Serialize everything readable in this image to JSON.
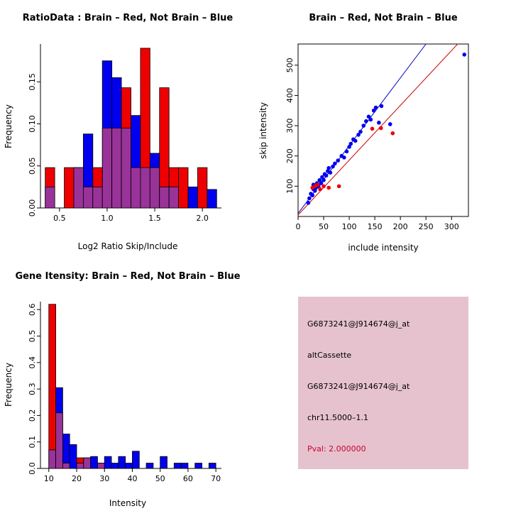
{
  "page": {
    "background": "#FFFFFF"
  },
  "colors": {
    "brain_red": "#EE0000",
    "not_brain_blue": "#0000EE",
    "overlap_purple": "#993399",
    "fit_line_blue": "#0000CC",
    "fit_line_red": "#CC0000",
    "info_panel_pink": "#E6C2CE",
    "pval_red": "#CC0033"
  },
  "info_panel": {
    "background": "#E6C2CE",
    "lines": [
      {
        "text": "G6873241@J914674@j_at",
        "color": "#000000"
      },
      {
        "text": "altCassette",
        "color": "#000000"
      },
      {
        "text": "G6873241@J914674@j_at",
        "color": "#000000"
      },
      {
        "text": "chr11.5000–1.1",
        "color": "#000000"
      },
      {
        "text": "Pval: 2.000000",
        "color": "#CC0033"
      }
    ]
  },
  "chart_data": [
    {
      "id": "ratio-histogram",
      "type": "bar",
      "title": "RatioData : Brain – Red, Not Brain – Blue",
      "xlabel": "Log2 Ratio Skip/Include",
      "ylabel": "Frequency",
      "xlim": [
        0.3,
        2.2
      ],
      "ylim": [
        0,
        0.195
      ],
      "xticks": [
        0.5,
        1.0,
        1.5,
        2.0
      ],
      "xtick_labels": [
        "0.5",
        "1.0",
        "1.5",
        "2.0"
      ],
      "yticks": [
        0.0,
        0.05,
        0.1,
        0.15
      ],
      "ytick_labels": [
        "0.00",
        "0.05",
        "0.10",
        "0.15"
      ],
      "grid": false,
      "legend": "none",
      "bin_start": 0.35,
      "bin_width": 0.1,
      "overlap_color": "#993399",
      "series": [
        {
          "name": "Not Brain (blue)",
          "color": "#0000EE",
          "values": [
            0.025,
            0,
            0,
            0.048,
            0.088,
            0.025,
            0.175,
            0.155,
            0.095,
            0.11,
            0.048,
            0.065,
            0.025,
            0.025,
            0,
            0.025,
            0,
            0.022
          ]
        },
        {
          "name": "Brain (red)",
          "color": "#EE0000",
          "values": [
            0.048,
            0,
            0.048,
            0.048,
            0.025,
            0.048,
            0.095,
            0.095,
            0.143,
            0.048,
            0.19,
            0.048,
            0.143,
            0.048,
            0.048,
            0,
            0.048,
            0
          ]
        }
      ]
    },
    {
      "id": "intensity-scatter",
      "type": "scatter",
      "title": "Brain – Red, Not Brain – Blue",
      "xlabel": "include intensity",
      "ylabel": "skip intensity",
      "xlim": [
        0,
        333
      ],
      "ylim": [
        0,
        570
      ],
      "xticks": [
        0,
        50,
        100,
        150,
        200,
        250,
        300
      ],
      "xtick_labels": [
        "0",
        "50",
        "100",
        "150",
        "200",
        "250",
        "300"
      ],
      "yticks": [
        100,
        200,
        300,
        400,
        500
      ],
      "ytick_labels": [
        "100",
        "200",
        "300",
        "400",
        "500"
      ],
      "grid": false,
      "legend": "none",
      "series": [
        {
          "name": "Not Brain (blue)",
          "color": "#0000EE",
          "points": [
            [
              20,
              45
            ],
            [
              22,
              60
            ],
            [
              25,
              75
            ],
            [
              28,
              70
            ],
            [
              30,
              90
            ],
            [
              30,
              105
            ],
            [
              33,
              85
            ],
            [
              35,
              95
            ],
            [
              37,
              110
            ],
            [
              40,
              100
            ],
            [
              42,
              120
            ],
            [
              45,
              110
            ],
            [
              47,
              130
            ],
            [
              50,
              120
            ],
            [
              52,
              140
            ],
            [
              55,
              135
            ],
            [
              58,
              150
            ],
            [
              60,
              160
            ],
            [
              63,
              145
            ],
            [
              68,
              165
            ],
            [
              72,
              175
            ],
            [
              78,
              185
            ],
            [
              85,
              200
            ],
            [
              90,
              195
            ],
            [
              95,
              215
            ],
            [
              100,
              230
            ],
            [
              103,
              240
            ],
            [
              108,
              255
            ],
            [
              112,
              250
            ],
            [
              118,
              270
            ],
            [
              122,
              280
            ],
            [
              128,
              300
            ],
            [
              133,
              315
            ],
            [
              138,
              330
            ],
            [
              142,
              320
            ],
            [
              148,
              350
            ],
            [
              152,
              360
            ],
            [
              158,
              310
            ],
            [
              163,
              365
            ],
            [
              180,
              305
            ],
            [
              325,
              535
            ]
          ]
        },
        {
          "name": "Brain (red)",
          "color": "#EE0000",
          "points": [
            [
              28,
              95
            ],
            [
              33,
              100
            ],
            [
              38,
              105
            ],
            [
              43,
              90
            ],
            [
              50,
              100
            ],
            [
              60,
              95
            ],
            [
              80,
              100
            ],
            [
              145,
              290
            ],
            [
              162,
              292
            ],
            [
              185,
              275
            ]
          ]
        }
      ],
      "lines": [
        {
          "name": "not-brain-fit",
          "color": "#0000CC",
          "x1": 0,
          "y1": 10,
          "x2": 250,
          "y2": 570
        },
        {
          "name": "brain-fit",
          "color": "#CC0000",
          "x1": 0,
          "y1": 5,
          "x2": 312,
          "y2": 570
        }
      ]
    },
    {
      "id": "gene-intensity-histogram",
      "type": "bar",
      "title": "Gene Itensity: Brain – Red, Not Brain – Blue",
      "xlabel": "Intensity",
      "ylabel": "Frequency",
      "xlim": [
        7,
        72
      ],
      "ylim": [
        0,
        0.63
      ],
      "xticks": [
        10,
        20,
        30,
        40,
        50,
        60,
        70
      ],
      "xtick_labels": [
        "10",
        "20",
        "30",
        "40",
        "50",
        "60",
        "70"
      ],
      "yticks": [
        0.0,
        0.1,
        0.2,
        0.3,
        0.4,
        0.5,
        0.6
      ],
      "ytick_labels": [
        "0.0",
        "0.1",
        "0.2",
        "0.3",
        "0.4",
        "0.5",
        "0.6"
      ],
      "grid": false,
      "legend": "none",
      "bin_start": 10,
      "bin_width": 2.5,
      "overlap_color": "#993399",
      "series": [
        {
          "name": "Not Brain (blue)",
          "color": "#0000EE",
          "values": [
            0.07,
            0.305,
            0.13,
            0.09,
            0.02,
            0.04,
            0.045,
            0.02,
            0.045,
            0.02,
            0.045,
            0.02,
            0.065,
            0,
            0.02,
            0,
            0.045,
            0,
            0.02,
            0.02,
            0,
            0.02,
            0,
            0.02
          ]
        },
        {
          "name": "Brain (red)",
          "color": "#EE0000",
          "values": [
            0.62,
            0.21,
            0.02,
            0,
            0.04,
            0.04,
            0,
            0.02,
            0,
            0,
            0,
            0,
            0,
            0,
            0,
            0,
            0,
            0,
            0,
            0,
            0,
            0,
            0,
            0
          ]
        }
      ]
    }
  ]
}
